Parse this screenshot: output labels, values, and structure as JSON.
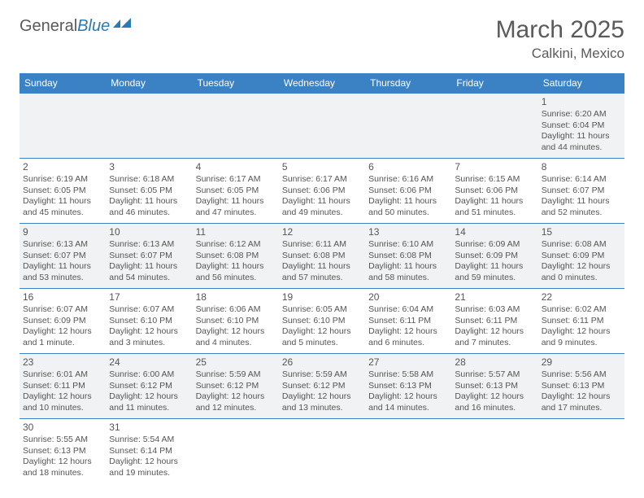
{
  "logo": {
    "word1": "General",
    "word2": "Blue"
  },
  "title": "March 2025",
  "location": "Calkini, Mexico",
  "weekdays": [
    "Sunday",
    "Monday",
    "Tuesday",
    "Wednesday",
    "Thursday",
    "Friday",
    "Saturday"
  ],
  "colors": {
    "header_bg": "#3a82c4",
    "header_text": "#ffffff",
    "cell_border": "#3a82c4",
    "alt_row_bg": "#f1f2f3",
    "text": "#555555",
    "logo_gray": "#5a5a5a",
    "logo_blue": "#2a7ab8"
  },
  "layout": {
    "start_day_index": 6,
    "days_in_month": 31,
    "fonts": {
      "title_pt": 30,
      "location_pt": 17,
      "weekday_pt": 12,
      "daynum_pt": 12,
      "detail_pt": 10.5
    }
  },
  "days": [
    {
      "n": 1,
      "sunrise": "6:20 AM",
      "sunset": "6:04 PM",
      "daylight": "11 hours and 44 minutes."
    },
    {
      "n": 2,
      "sunrise": "6:19 AM",
      "sunset": "6:05 PM",
      "daylight": "11 hours and 45 minutes."
    },
    {
      "n": 3,
      "sunrise": "6:18 AM",
      "sunset": "6:05 PM",
      "daylight": "11 hours and 46 minutes."
    },
    {
      "n": 4,
      "sunrise": "6:17 AM",
      "sunset": "6:05 PM",
      "daylight": "11 hours and 47 minutes."
    },
    {
      "n": 5,
      "sunrise": "6:17 AM",
      "sunset": "6:06 PM",
      "daylight": "11 hours and 49 minutes."
    },
    {
      "n": 6,
      "sunrise": "6:16 AM",
      "sunset": "6:06 PM",
      "daylight": "11 hours and 50 minutes."
    },
    {
      "n": 7,
      "sunrise": "6:15 AM",
      "sunset": "6:06 PM",
      "daylight": "11 hours and 51 minutes."
    },
    {
      "n": 8,
      "sunrise": "6:14 AM",
      "sunset": "6:07 PM",
      "daylight": "11 hours and 52 minutes."
    },
    {
      "n": 9,
      "sunrise": "6:13 AM",
      "sunset": "6:07 PM",
      "daylight": "11 hours and 53 minutes."
    },
    {
      "n": 10,
      "sunrise": "6:13 AM",
      "sunset": "6:07 PM",
      "daylight": "11 hours and 54 minutes."
    },
    {
      "n": 11,
      "sunrise": "6:12 AM",
      "sunset": "6:08 PM",
      "daylight": "11 hours and 56 minutes."
    },
    {
      "n": 12,
      "sunrise": "6:11 AM",
      "sunset": "6:08 PM",
      "daylight": "11 hours and 57 minutes."
    },
    {
      "n": 13,
      "sunrise": "6:10 AM",
      "sunset": "6:08 PM",
      "daylight": "11 hours and 58 minutes."
    },
    {
      "n": 14,
      "sunrise": "6:09 AM",
      "sunset": "6:09 PM",
      "daylight": "11 hours and 59 minutes."
    },
    {
      "n": 15,
      "sunrise": "6:08 AM",
      "sunset": "6:09 PM",
      "daylight": "12 hours and 0 minutes."
    },
    {
      "n": 16,
      "sunrise": "6:07 AM",
      "sunset": "6:09 PM",
      "daylight": "12 hours and 1 minute."
    },
    {
      "n": 17,
      "sunrise": "6:07 AM",
      "sunset": "6:10 PM",
      "daylight": "12 hours and 3 minutes."
    },
    {
      "n": 18,
      "sunrise": "6:06 AM",
      "sunset": "6:10 PM",
      "daylight": "12 hours and 4 minutes."
    },
    {
      "n": 19,
      "sunrise": "6:05 AM",
      "sunset": "6:10 PM",
      "daylight": "12 hours and 5 minutes."
    },
    {
      "n": 20,
      "sunrise": "6:04 AM",
      "sunset": "6:11 PM",
      "daylight": "12 hours and 6 minutes."
    },
    {
      "n": 21,
      "sunrise": "6:03 AM",
      "sunset": "6:11 PM",
      "daylight": "12 hours and 7 minutes."
    },
    {
      "n": 22,
      "sunrise": "6:02 AM",
      "sunset": "6:11 PM",
      "daylight": "12 hours and 9 minutes."
    },
    {
      "n": 23,
      "sunrise": "6:01 AM",
      "sunset": "6:11 PM",
      "daylight": "12 hours and 10 minutes."
    },
    {
      "n": 24,
      "sunrise": "6:00 AM",
      "sunset": "6:12 PM",
      "daylight": "12 hours and 11 minutes."
    },
    {
      "n": 25,
      "sunrise": "5:59 AM",
      "sunset": "6:12 PM",
      "daylight": "12 hours and 12 minutes."
    },
    {
      "n": 26,
      "sunrise": "5:59 AM",
      "sunset": "6:12 PM",
      "daylight": "12 hours and 13 minutes."
    },
    {
      "n": 27,
      "sunrise": "5:58 AM",
      "sunset": "6:13 PM",
      "daylight": "12 hours and 14 minutes."
    },
    {
      "n": 28,
      "sunrise": "5:57 AM",
      "sunset": "6:13 PM",
      "daylight": "12 hours and 16 minutes."
    },
    {
      "n": 29,
      "sunrise": "5:56 AM",
      "sunset": "6:13 PM",
      "daylight": "12 hours and 17 minutes."
    },
    {
      "n": 30,
      "sunrise": "5:55 AM",
      "sunset": "6:13 PM",
      "daylight": "12 hours and 18 minutes."
    },
    {
      "n": 31,
      "sunrise": "5:54 AM",
      "sunset": "6:14 PM",
      "daylight": "12 hours and 19 minutes."
    }
  ],
  "labels": {
    "sunrise": "Sunrise:",
    "sunset": "Sunset:",
    "daylight": "Daylight:"
  }
}
